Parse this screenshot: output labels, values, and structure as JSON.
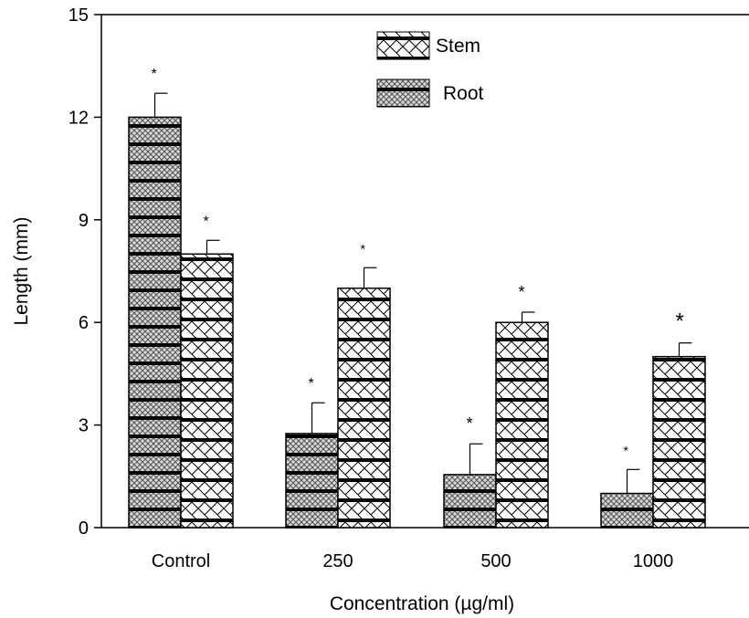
{
  "chart_data": {
    "type": "bar",
    "title": "",
    "xlabel": "Concentration (µg/ml)",
    "ylabel": "Length (mm)",
    "ylim": [
      0,
      15
    ],
    "yticks": [
      "0",
      "3",
      "6",
      "9",
      "12",
      "15"
    ],
    "categories": [
      "Control",
      "250",
      "500",
      "1000"
    ],
    "series": [
      {
        "name": "Root",
        "values": [
          12.0,
          2.75,
          1.55,
          1.0
        ],
        "errors": [
          0.7,
          0.9,
          0.9,
          0.7
        ],
        "significance": [
          "*",
          "*",
          "*",
          "*"
        ]
      },
      {
        "name": "Stem",
        "values": [
          8.0,
          7.0,
          6.0,
          5.0
        ],
        "errors": [
          0.4,
          0.6,
          0.3,
          0.4
        ],
        "significance": [
          "*",
          "*",
          "*",
          "*"
        ]
      }
    ],
    "legend_position": "top-center",
    "grid": false
  }
}
